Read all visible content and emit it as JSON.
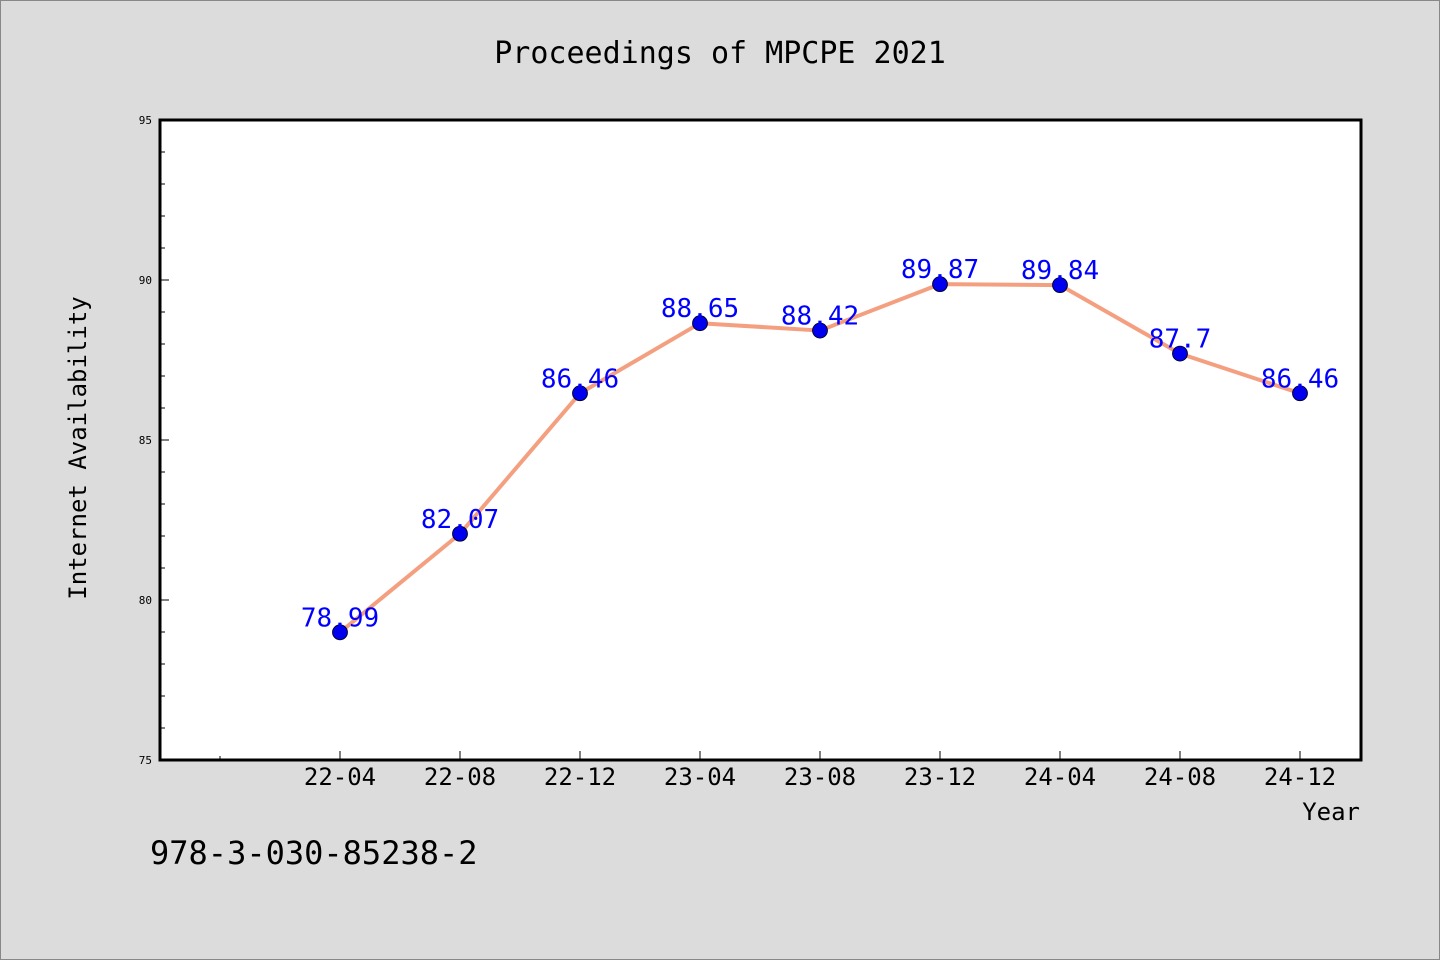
{
  "chart_data": {
    "type": "line",
    "title": "Proceedings of MPCPE 2021",
    "xlabel": "Year",
    "ylabel": "Internet Availability",
    "categories": [
      "22-04",
      "22-08",
      "22-12",
      "23-04",
      "23-08",
      "23-12",
      "24-04",
      "24-08",
      "24-12"
    ],
    "series": [
      {
        "values": [
          78.99,
          82.07,
          86.46,
          88.65,
          88.42,
          89.87,
          89.84,
          87.7,
          86.46
        ],
        "line_color": "#f4a080",
        "marker_color": "#0000ee",
        "label_color": "#0000ff"
      }
    ],
    "ylim": [
      75,
      95
    ],
    "y_ticks": [
      75,
      80,
      85,
      90,
      95
    ],
    "grid": false,
    "legend": "none"
  },
  "footer": {
    "isbn": "978-3-030-85238-2"
  },
  "colors": {
    "background": "#dcdcdc",
    "plot_background": "#ffffff",
    "axis": "#000000"
  }
}
